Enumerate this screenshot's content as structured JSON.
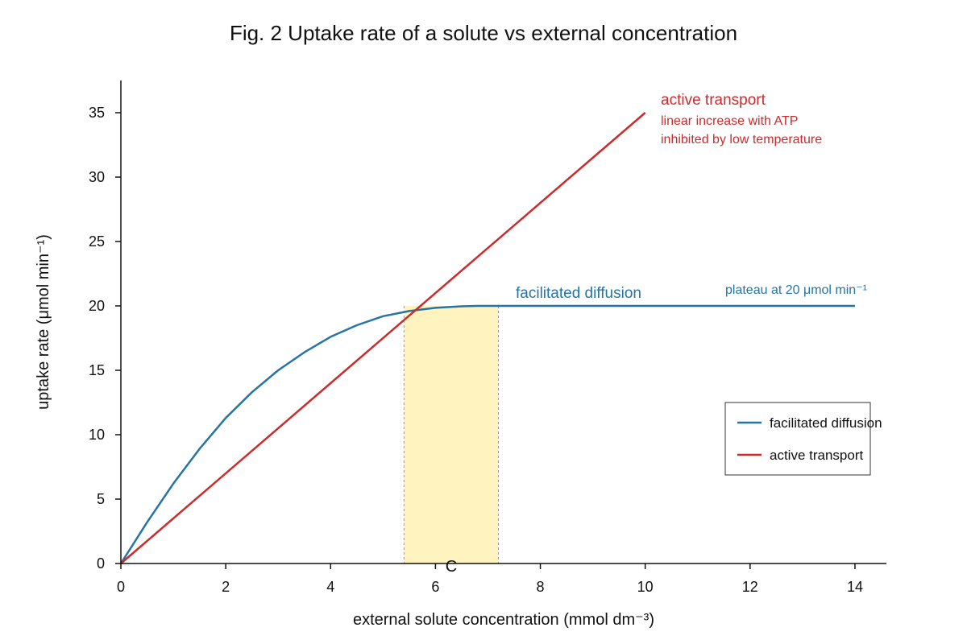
{
  "chart_data": {
    "type": "line",
    "title": "Fig. 2 Uptake rate of a solute vs external concentration",
    "xlabel": "external solute concentration (mmol dm⁻³)",
    "ylabel": "uptake rate (μmol min⁻¹)",
    "xlim": [
      0,
      14.6
    ],
    "ylim": [
      0,
      37.5
    ],
    "xticks": [
      0,
      2,
      4,
      6,
      8,
      10,
      12,
      14
    ],
    "yticks": [
      0,
      5,
      10,
      15,
      20,
      25,
      30,
      35
    ],
    "grid": false,
    "legend_position": "lower-right",
    "series": [
      {
        "name": "facilitated diffusion",
        "color": "#2674a6",
        "x": [
          0,
          0.5,
          1,
          1.5,
          2,
          2.5,
          3,
          3.5,
          4,
          4.5,
          5,
          5.5,
          6,
          6.5,
          6.8,
          7,
          8,
          9,
          10,
          11,
          12,
          13,
          14
        ],
        "y": [
          0,
          3.2,
          6.2,
          8.9,
          11.3,
          13.3,
          15.0,
          16.4,
          17.6,
          18.5,
          19.2,
          19.6,
          19.85,
          19.97,
          20,
          20,
          20,
          20,
          20,
          20,
          20,
          20,
          20
        ]
      },
      {
        "name": "active transport",
        "color": "#cc2b2b",
        "x": [
          0,
          10
        ],
        "y": [
          0,
          35
        ]
      }
    ],
    "shaded_region": {
      "x_range": [
        5.4,
        7.2
      ],
      "color": "#fff3bf"
    },
    "annotations": {
      "active_title": "active transport",
      "active_line1": "linear increase with ATP",
      "active_line2": "inhibited by low temperature",
      "facilitated": "facilitated diffusion",
      "plateau": "plateau at 20 μmol min⁻¹",
      "marker": "C"
    }
  }
}
